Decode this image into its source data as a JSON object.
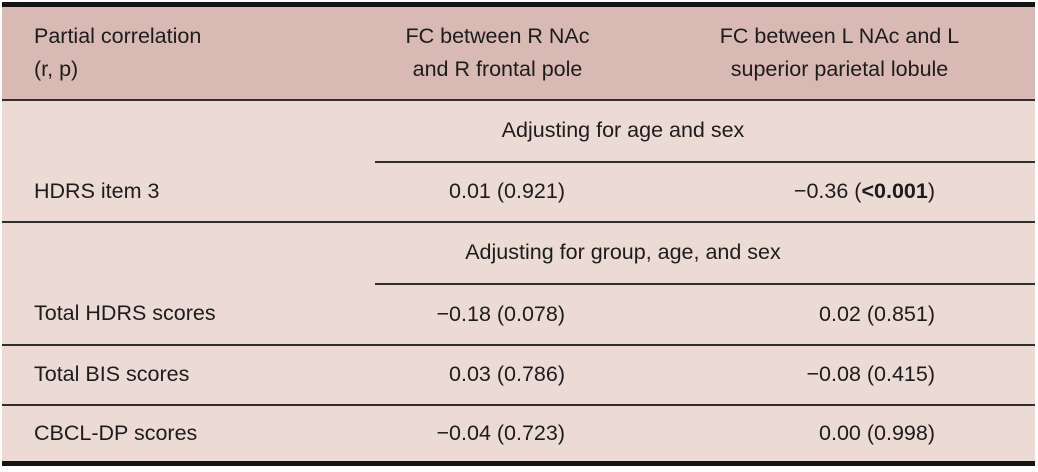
{
  "table": {
    "header": {
      "col1_line1": "Partial correlation",
      "col1_line2": "(r, p)",
      "col2_line1": "FC between R NAc",
      "col2_line2": "and R frontal pole",
      "col3_line1": "FC between L NAc and L",
      "col3_line2": "superior parietal lobule"
    },
    "sections": [
      {
        "subheader": "Adjusting for age and sex",
        "rows": [
          {
            "label": "HDRS item 3",
            "col2": "0.01 (0.921)",
            "col3_prefix": "−0.36 (",
            "col3_bold": "<0.001",
            "col3_suffix": ")"
          }
        ]
      },
      {
        "subheader": "Adjusting for group, age, and sex",
        "rows": [
          {
            "label": "Total HDRS scores",
            "col2": "−0.18 (0.078)",
            "col3": "0.02 (0.851)"
          },
          {
            "label": "Total BIS scores",
            "col2": "0.03 (0.786)",
            "col3": "−0.08 (0.415)"
          },
          {
            "label": "CBCL-DP scores",
            "col2": "−0.04 (0.723)",
            "col3": "0.00 (0.998)"
          }
        ]
      }
    ],
    "colors": {
      "header_bg": "#d8b9b4",
      "body_bg": "#ecdad5",
      "rule": "#2f2f2f",
      "outer_border": "#141414",
      "text": "#1c1c1c"
    }
  }
}
